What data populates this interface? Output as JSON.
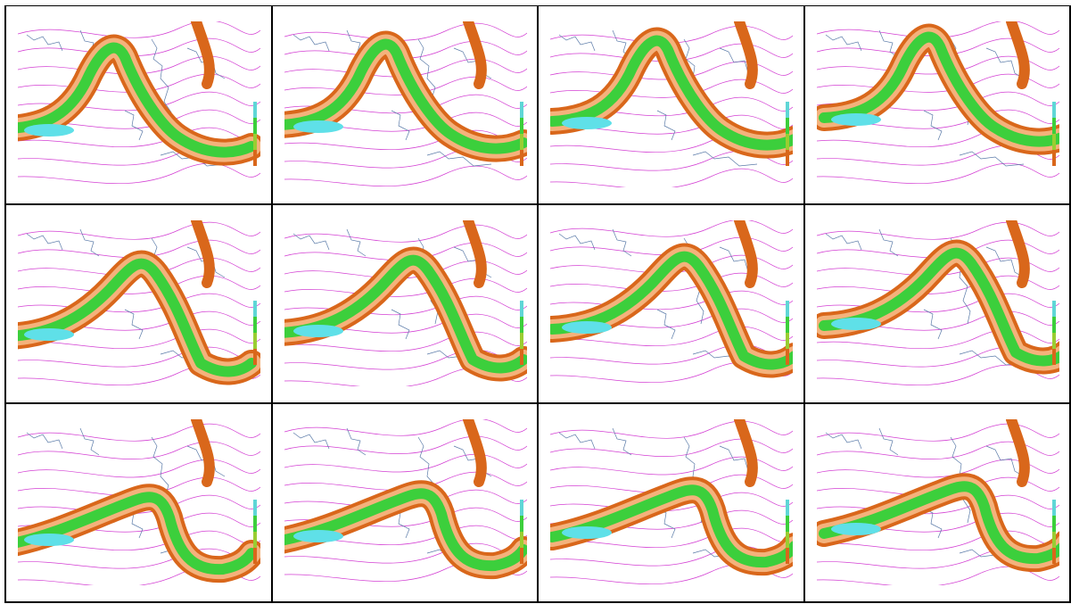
{
  "figure": {
    "rows": 3,
    "columns": 4,
    "panel_count": 12,
    "content": "jet-stream wind-speed maps over the North Atlantic and Europe"
  },
  "colors": {
    "border": "#000000",
    "background": "#ffffff",
    "speed_band_1": "#f4b27c",
    "speed_band_2": "#d9671b",
    "speed_band_3": "#3ccf3c",
    "speed_band_4": "#5fe0e8",
    "contour_lines": "#d33fd3",
    "coastlines": "#5a7aa8",
    "colorbar": [
      "#5fd6d6",
      "#3ccf3c",
      "#9acd32",
      "#d9671b"
    ]
  },
  "panels": [
    {
      "id": 1
    },
    {
      "id": 2
    },
    {
      "id": 3
    },
    {
      "id": 4
    },
    {
      "id": 5
    },
    {
      "id": 6
    },
    {
      "id": 7
    },
    {
      "id": 8
    },
    {
      "id": 9
    },
    {
      "id": 10
    },
    {
      "id": 11
    },
    {
      "id": 12
    }
  ]
}
